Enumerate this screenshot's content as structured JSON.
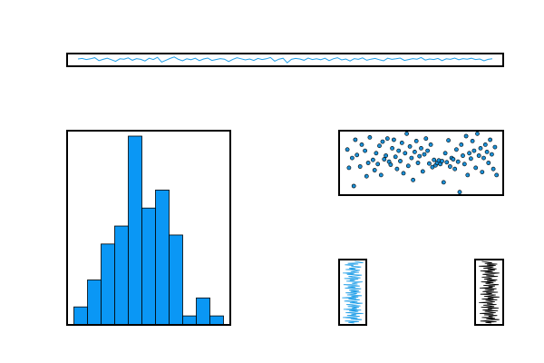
{
  "chart_data": [
    {
      "type": "line",
      "title": "",
      "xlabel": "",
      "ylabel": "",
      "grid": false,
      "color": "#1f9ee8",
      "x_range": [
        0,
        99
      ],
      "y_range": [
        -3,
        3
      ],
      "series": [
        {
          "values": [
            0.5,
            0.8,
            0.2,
            0.6,
            1.2,
            -0.4,
            0.3,
            0.9,
            0.1,
            -0.8,
            0.6,
            0.4,
            1.1,
            -0.2,
            0.7,
            0.3,
            -0.6,
            0.9,
            0.2,
            1.4,
            -1.2,
            -0.2,
            0.8,
            1.6,
            0.3,
            -0.5,
            0.6,
            0.1,
            0.9,
            -0.4,
            0.5,
            1.0,
            -0.3,
            0.2,
            0.7,
            0.4,
            -0.9,
            0.3,
            1.2,
            0.6,
            0.0,
            0.5,
            -0.3,
            0.8,
            0.2,
            0.6,
            1.3,
            -0.7,
            0.4,
            0.9,
            -1.6,
            0.3,
            0.8,
            0.5,
            -0.2,
            1.0,
            0.2,
            0.6,
            0.1,
            0.9,
            -0.4,
            0.6,
            1.2,
            0.0,
            0.5,
            -0.6,
            0.7,
            0.3,
            1.1,
            -0.2,
            0.4,
            0.8,
            0.1,
            -0.5,
            0.9,
            0.3,
            0.6,
            1.0,
            -0.3,
            0.2,
            0.7,
            0.4,
            1.3,
            -0.1,
            0.5,
            0.2,
            0.8,
            -0.4,
            0.6,
            0.3,
            1.0,
            0.1,
            0.7,
            0.4,
            0.9,
            0.2,
            0.5,
            -0.5,
            0.3,
            0.6
          ]
        }
      ]
    },
    {
      "type": "bar",
      "subtype": "histogram",
      "title": "",
      "xlabel": "",
      "ylabel": "",
      "grid": false,
      "color": "#0a97f5",
      "edge_color": "#000000",
      "x_range": [
        0,
        12
      ],
      "ylim": [
        0,
        21
      ],
      "values": [
        2,
        5,
        9,
        11,
        21,
        13,
        15,
        10,
        1,
        3,
        1
      ]
    },
    {
      "type": "scatter",
      "title": "",
      "xlabel": "",
      "ylabel": "",
      "grid": false,
      "color": "#1a8fd6",
      "edge_color": "#000000",
      "x_range": [
        0,
        1
      ],
      "y_range": [
        0,
        1
      ],
      "points": [
        [
          0.04,
          0.72
        ],
        [
          0.05,
          0.42
        ],
        [
          0.07,
          0.58
        ],
        [
          0.08,
          0.12
        ],
        [
          0.09,
          0.88
        ],
        [
          0.1,
          0.63
        ],
        [
          0.12,
          0.44
        ],
        [
          0.13,
          0.8
        ],
        [
          0.15,
          0.7
        ],
        [
          0.16,
          0.28
        ],
        [
          0.17,
          0.5
        ],
        [
          0.18,
          0.92
        ],
        [
          0.2,
          0.55
        ],
        [
          0.21,
          0.38
        ],
        [
          0.22,
          0.66
        ],
        [
          0.23,
          0.48
        ],
        [
          0.24,
          0.78
        ],
        [
          0.25,
          0.3
        ],
        [
          0.26,
          0.85
        ],
        [
          0.27,
          0.56
        ],
        [
          0.28,
          0.62
        ],
        [
          0.29,
          0.9
        ],
        [
          0.3,
          0.52
        ],
        [
          0.31,
          0.47
        ],
        [
          0.32,
          0.74
        ],
        [
          0.33,
          0.88
        ],
        [
          0.34,
          0.6
        ],
        [
          0.35,
          0.4
        ],
        [
          0.36,
          0.7
        ],
        [
          0.37,
          0.53
        ],
        [
          0.38,
          0.83
        ],
        [
          0.39,
          0.33
        ],
        [
          0.4,
          0.66
        ],
        [
          0.41,
          0.98
        ],
        [
          0.42,
          0.45
        ],
        [
          0.43,
          0.77
        ],
        [
          0.44,
          0.58
        ],
        [
          0.45,
          0.22
        ],
        [
          0.46,
          0.68
        ],
        [
          0.47,
          0.86
        ],
        [
          0.48,
          0.5
        ],
        [
          0.49,
          0.61
        ],
        [
          0.5,
          0.74
        ],
        [
          0.51,
          0.36
        ],
        [
          0.52,
          0.64
        ],
        [
          0.53,
          0.9
        ],
        [
          0.54,
          0.7
        ],
        [
          0.55,
          0.49
        ],
        [
          0.56,
          0.8
        ],
        [
          0.57,
          0.43
        ],
        [
          0.58,
          0.55
        ],
        [
          0.59,
          0.46
        ],
        [
          0.6,
          0.5
        ],
        [
          0.61,
          0.54
        ],
        [
          0.62,
          0.48
        ],
        [
          0.63,
          0.53
        ],
        [
          0.64,
          0.18
        ],
        [
          0.65,
          0.66
        ],
        [
          0.66,
          0.51
        ],
        [
          0.67,
          0.87
        ],
        [
          0.68,
          0.44
        ],
        [
          0.69,
          0.58
        ],
        [
          0.7,
          0.56
        ],
        [
          0.71,
          0.4
        ],
        [
          0.72,
          0.72
        ],
        [
          0.73,
          0.52
        ],
        [
          0.74,
          0.02
        ],
        [
          0.75,
          0.8
        ],
        [
          0.76,
          0.62
        ],
        [
          0.77,
          0.48
        ],
        [
          0.78,
          0.94
        ],
        [
          0.79,
          0.3
        ],
        [
          0.8,
          0.66
        ],
        [
          0.81,
          0.57
        ],
        [
          0.82,
          0.86
        ],
        [
          0.83,
          0.7
        ],
        [
          0.84,
          0.42
        ],
        [
          0.85,
          0.98
        ],
        [
          0.86,
          0.62
        ],
        [
          0.87,
          0.74
        ],
        [
          0.88,
          0.35
        ],
        [
          0.89,
          0.58
        ],
        [
          0.9,
          0.8
        ],
        [
          0.91,
          0.68
        ],
        [
          0.92,
          0.5
        ],
        [
          0.93,
          0.88
        ],
        [
          0.94,
          0.64
        ],
        [
          0.95,
          0.4
        ],
        [
          0.96,
          0.76
        ],
        [
          0.97,
          0.3
        ]
      ]
    },
    {
      "type": "line",
      "title": "",
      "xlabel": "",
      "ylabel": "",
      "grid": false,
      "color": "#1f9ee8",
      "x_range": [
        -1.8,
        1.8
      ],
      "y_range": [
        0,
        1
      ],
      "series": [
        {
          "x": [
            0.2,
            -0.6,
            0.9,
            -1.1,
            0.4,
            1.3,
            -0.3,
            0.7,
            -1.4,
            0.1,
            1.0,
            -0.8,
            0.5,
            -0.2,
            1.5,
            -1.0,
            0.3,
            0.8,
            -0.5,
            1.2,
            -1.3,
            0.6,
            -0.1,
            0.9,
            -0.7,
            1.1,
            0.0,
            -0.9,
            0.4,
            1.4,
            -0.4,
            0.7,
            -1.2,
            0.2,
            1.0,
            -0.6,
            0.5,
            -1.5,
            0.8,
            -0.2,
            1.3,
            -0.8,
            0.3,
            0.6,
            -1.0,
            1.1,
            -0.3,
            0.9,
            -0.5,
            0.1,
            1.2,
            -1.1,
            0.4,
            -0.7,
            1.0,
            0.2,
            -1.3,
            0.7,
            -0.1,
            0.5,
            1.4,
            -0.9,
            0.3,
            -0.4,
            0.8,
            -1.2,
            1.1,
            0.0,
            -0.6,
            0.6,
            1.3,
            -0.8,
            0.2,
            -1.4,
            0.9,
            -0.3,
            0.5,
            1.0,
            -1.0,
            0.4,
            -0.5,
            0.7,
            1.2,
            -0.2,
            0.1,
            -1.1,
            0.8,
            -0.7,
            1.5,
            0.3
          ],
          "y": [
            0.0,
            0.011,
            0.022,
            0.033,
            0.044,
            0.056,
            0.067,
            0.078,
            0.089,
            0.1,
            0.111,
            0.122,
            0.133,
            0.144,
            0.156,
            0.167,
            0.178,
            0.189,
            0.2,
            0.211,
            0.222,
            0.233,
            0.244,
            0.256,
            0.267,
            0.278,
            0.289,
            0.3,
            0.311,
            0.322,
            0.333,
            0.344,
            0.356,
            0.367,
            0.378,
            0.389,
            0.4,
            0.411,
            0.422,
            0.433,
            0.444,
            0.456,
            0.467,
            0.478,
            0.489,
            0.5,
            0.511,
            0.522,
            0.533,
            0.544,
            0.556,
            0.567,
            0.578,
            0.589,
            0.6,
            0.611,
            0.622,
            0.633,
            0.644,
            0.656,
            0.667,
            0.678,
            0.689,
            0.7,
            0.711,
            0.722,
            0.733,
            0.744,
            0.756,
            0.767,
            0.778,
            0.789,
            0.8,
            0.811,
            0.822,
            0.833,
            0.844,
            0.856,
            0.867,
            0.878,
            0.889,
            0.9,
            0.911,
            0.922,
            0.933,
            0.944,
            0.956,
            0.967,
            0.978,
            1.0
          ]
        }
      ]
    },
    {
      "type": "line",
      "title": "",
      "xlabel": "",
      "ylabel": "",
      "grid": false,
      "color": "#000000",
      "x_range": [
        -1.8,
        1.8
      ],
      "y_range": [
        0,
        1
      ],
      "series": [
        {
          "x": [
            0.3,
            -0.5,
            1.0,
            -1.2,
            0.2,
            1.4,
            -0.4,
            0.8,
            -1.0,
            0.5,
            -0.1,
            1.1,
            -0.7,
            0.6,
            -1.3,
            0.9,
            0.1,
            -0.6,
            1.2,
            -0.9,
            0.4,
            -0.2,
            1.3,
            -1.1,
            0.7,
            0.0,
            -0.8,
            1.0,
            -0.3,
            0.5,
            -1.4,
            0.8,
            0.2,
            -0.5,
            1.1,
            -1.0,
            0.6,
            -0.2,
            1.4,
            -0.7,
            0.3,
            0.9,
            -1.2,
            0.4,
            -0.4,
            1.2,
            -0.9,
            0.1,
            0.7,
            -0.6,
            1.0,
            -1.3,
            0.5,
            -0.1,
            0.8,
            -0.8,
            1.3,
            0.2,
            -0.5,
            0.6,
            -1.1,
            0.9,
            -0.3,
            1.1,
            -0.7,
            0.4,
            0.0,
            -1.0,
            1.2,
            -0.4,
            0.7,
            -0.9,
            0.3,
            1.4,
            -0.6,
            0.5,
            -1.2,
            0.8,
            -0.2,
            1.0,
            -0.8,
            0.2,
            0.6,
            -1.4,
            0.9,
            -0.3,
            1.1,
            -0.6,
            0.4,
            -1.0
          ],
          "y": [
            0.0,
            0.011,
            0.022,
            0.033,
            0.044,
            0.056,
            0.067,
            0.078,
            0.089,
            0.1,
            0.111,
            0.122,
            0.133,
            0.144,
            0.156,
            0.167,
            0.178,
            0.189,
            0.2,
            0.211,
            0.222,
            0.233,
            0.244,
            0.256,
            0.267,
            0.278,
            0.289,
            0.3,
            0.311,
            0.322,
            0.333,
            0.344,
            0.356,
            0.367,
            0.378,
            0.389,
            0.4,
            0.411,
            0.422,
            0.433,
            0.444,
            0.456,
            0.467,
            0.478,
            0.489,
            0.5,
            0.511,
            0.522,
            0.533,
            0.544,
            0.556,
            0.567,
            0.578,
            0.589,
            0.6,
            0.611,
            0.622,
            0.633,
            0.644,
            0.656,
            0.667,
            0.678,
            0.689,
            0.7,
            0.711,
            0.722,
            0.733,
            0.744,
            0.756,
            0.767,
            0.778,
            0.789,
            0.8,
            0.811,
            0.822,
            0.833,
            0.844,
            0.856,
            0.867,
            0.878,
            0.889,
            0.9,
            0.911,
            0.922,
            0.933,
            0.944,
            0.956,
            0.967,
            0.978,
            1.0
          ]
        }
      ]
    }
  ]
}
